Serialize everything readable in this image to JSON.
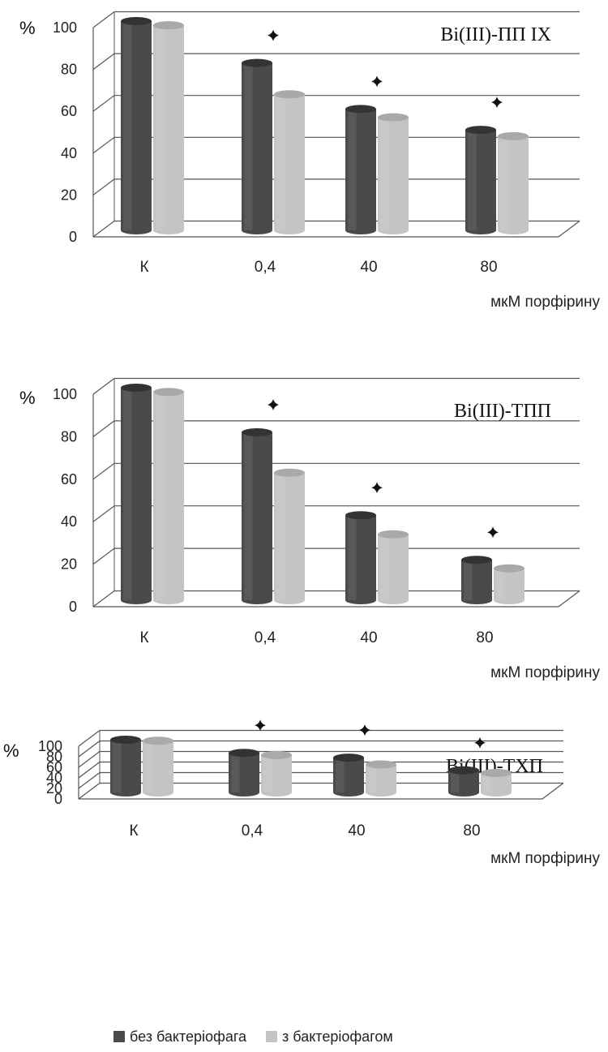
{
  "chart_data": [
    {
      "type": "bar",
      "title": "Bi(III)-ПП IX",
      "ylabel": "%",
      "xlabel": "мкМ порфірину",
      "categories": [
        "К",
        "0,4",
        "40",
        "80"
      ],
      "ylim": [
        0,
        100
      ],
      "yticks": [
        0,
        20,
        40,
        60,
        80,
        100
      ],
      "series": [
        {
          "name": "без бактеріофага",
          "values": [
            100,
            80,
            58,
            48
          ]
        },
        {
          "name": "з бактеріофагом",
          "values": [
            98,
            65,
            54,
            45
          ]
        }
      ],
      "markers": [
        null,
        "✦",
        "✦",
        "✦"
      ],
      "grid": true
    },
    {
      "type": "bar",
      "title": "Bi(III)-ТПП",
      "ylabel": "%",
      "xlabel": "мкМ порфірину",
      "categories": [
        "К",
        "0,4",
        "40",
        "80"
      ],
      "ylim": [
        0,
        100
      ],
      "yticks": [
        0,
        20,
        40,
        60,
        80,
        100
      ],
      "series": [
        {
          "name": "без бактеріофага",
          "values": [
            100,
            79,
            40,
            19
          ]
        },
        {
          "name": "з бактеріофагом",
          "values": [
            98,
            60,
            31,
            15
          ]
        }
      ],
      "markers": [
        null,
        "✦",
        "✦",
        "✦"
      ],
      "grid": true
    },
    {
      "type": "bar",
      "title": "Bi(III)-ТХП",
      "ylabel": "%",
      "xlabel": "мкМ порфірину",
      "categories": [
        "К",
        "0,4",
        "40",
        "80"
      ],
      "ylim": [
        0,
        100
      ],
      "yticks": [
        0,
        20,
        40,
        60,
        80,
        100
      ],
      "series": [
        {
          "name": "без бактеріофага",
          "values": [
            100,
            75,
            66,
            42
          ]
        },
        {
          "name": "з бактеріофагом",
          "values": [
            98,
            71,
            53,
            37
          ]
        }
      ],
      "markers": [
        null,
        "✦",
        "✦",
        "✦"
      ],
      "grid": true
    }
  ],
  "legend": {
    "items": [
      {
        "label": "без бактеріофага",
        "color": "#4a4a4a"
      },
      {
        "label": "з бактеріофагом",
        "color": "#c4c4c4"
      }
    ]
  },
  "colors": {
    "series_dark": "#4a4a4a",
    "series_light": "#c4c4c4",
    "grid": "#555555",
    "marker": "#111111"
  }
}
